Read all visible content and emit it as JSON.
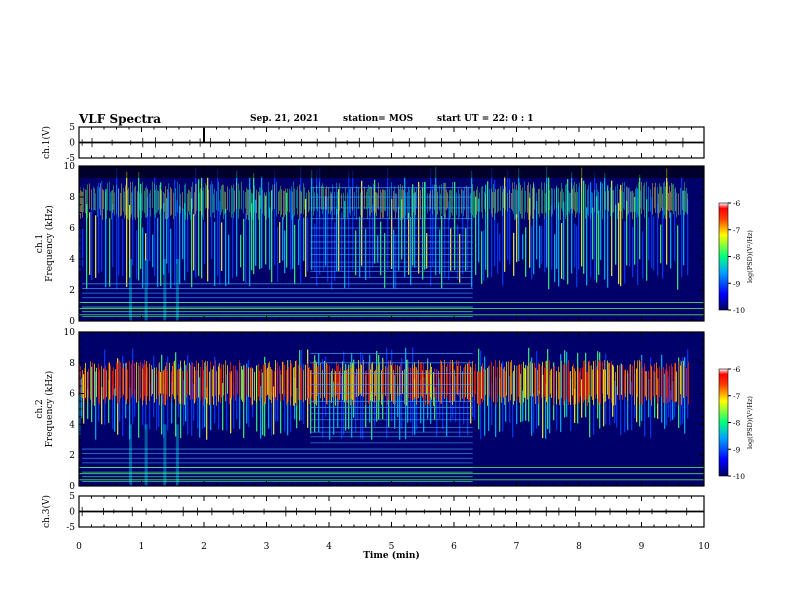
{
  "header": {
    "title": "VLF Spectra",
    "date": "Sep. 21, 2021",
    "station": "station= MOS",
    "start": "start  UT =  22: 0  : 1"
  },
  "colorbar": {
    "label": "log(PSD)(V²/Hz)",
    "ticks": [
      "-6",
      "-7",
      "-8",
      "-9",
      "-10"
    ],
    "range": [
      -10,
      -6
    ]
  },
  "colors": {
    "background": "#000070",
    "low": "#0000ff",
    "mid": "#00ff80",
    "high": "#ffff00",
    "peak": "#ff0000"
  },
  "chart_data": [
    {
      "type": "line",
      "panel": "ch.1(V)",
      "ylabel": "ch.1(V)",
      "yticks": [
        "5",
        "0",
        "-5"
      ],
      "ylim": [
        -5,
        5
      ],
      "x": [
        0,
        10
      ],
      "values": [
        0,
        0
      ]
    },
    {
      "type": "heatmap",
      "panel": "ch.1",
      "ylabel": "ch.1\nFrequency (kHz)",
      "yticks": [
        "10",
        "8",
        "6",
        "4",
        "2",
        "0"
      ],
      "ylim": [
        0,
        10
      ],
      "xlim": [
        0,
        10
      ],
      "zlabel": "log(PSD)(V²/Hz)",
      "zlim": [
        -10,
        -6
      ]
    },
    {
      "type": "heatmap",
      "panel": "ch.2",
      "ylabel": "ch.2\nFrequency (kHz)",
      "yticks": [
        "10",
        "8",
        "6",
        "4",
        "2",
        "0"
      ],
      "ylim": [
        0,
        10
      ],
      "xlim": [
        0,
        10
      ],
      "zlabel": "log(PSD)(V²/Hz)",
      "zlim": [
        -10,
        -6
      ]
    },
    {
      "type": "line",
      "panel": "ch.3(V)",
      "ylabel": "ch.3(V)",
      "yticks": [
        "5",
        "0",
        "-5"
      ],
      "ylim": [
        -5,
        5
      ],
      "x": [
        0,
        10
      ],
      "values": [
        0,
        0
      ]
    }
  ],
  "xaxis": {
    "label": "Time (min)",
    "ticks": [
      "0",
      "1",
      "2",
      "3",
      "4",
      "5",
      "6",
      "7",
      "8",
      "9",
      "10"
    ],
    "xlim": [
      0,
      10
    ]
  }
}
